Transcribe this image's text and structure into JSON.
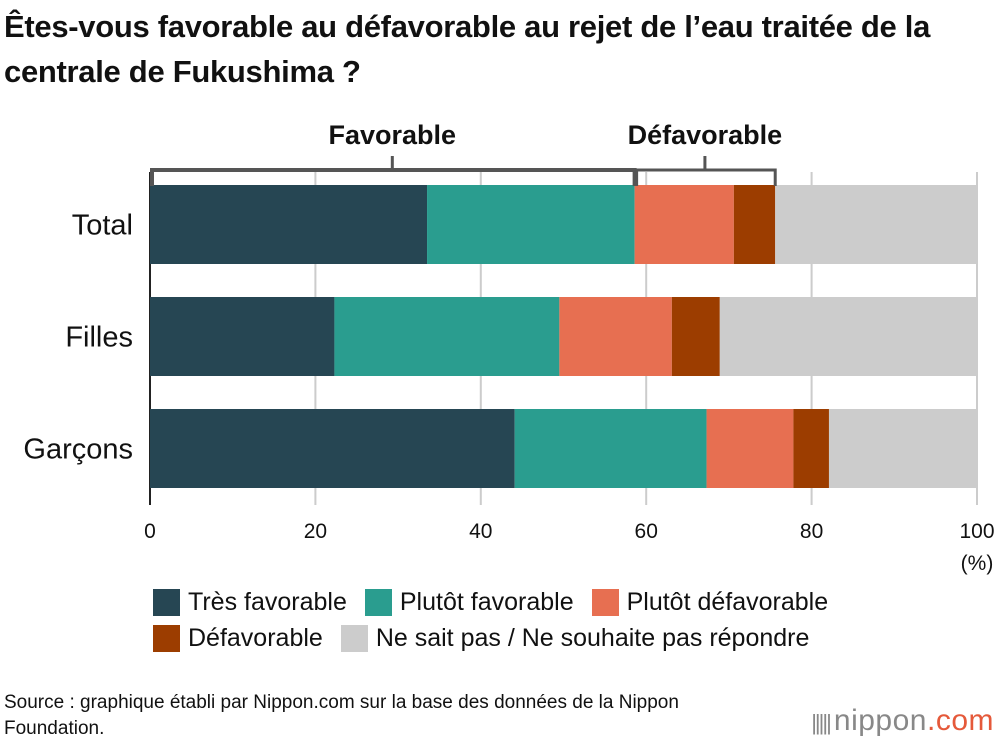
{
  "title": "Êtes-vous favorable au défavorable au rejet de l’eau traitée de la centrale de Fukushima ?",
  "chart_data": {
    "type": "bar",
    "orientation": "horizontal",
    "stacked": true,
    "categories": [
      "Total",
      "Filles",
      "Garçons"
    ],
    "series": [
      {
        "name": "Très favorable",
        "color": "#264653",
        "values": [
          33.5,
          22.3,
          44.1
        ]
      },
      {
        "name": "Plutôt favorable",
        "color": "#2a9d8f",
        "values": [
          25.1,
          27.2,
          23.2
        ]
      },
      {
        "name": "Plutôt défavorable",
        "color": "#e76f51",
        "values": [
          12.0,
          13.6,
          10.5
        ]
      },
      {
        "name": "Défavorable",
        "color": "#9c3d00",
        "values": [
          5.0,
          5.8,
          4.3
        ]
      },
      {
        "name": "Ne sait pas / Ne souhaite pas répondre",
        "color": "#cccccc",
        "values": [
          24.4,
          31.1,
          17.9
        ]
      }
    ],
    "xlim": [
      0,
      100
    ],
    "xticks": [
      "0",
      "20",
      "40",
      "60",
      "80",
      "100"
    ],
    "xunit": "(%)",
    "grid": true,
    "legend": "bottom",
    "brackets": [
      {
        "label": "Favorable",
        "from": 0,
        "to": 58.6
      },
      {
        "label": "Défavorable",
        "from": 58.6,
        "to": 75.6
      }
    ]
  },
  "source": "Source : graphique établi par Nippon.com sur la base des données de la Nippon Foundation.",
  "logo": {
    "text": "nippon",
    "suffix": ".com"
  }
}
